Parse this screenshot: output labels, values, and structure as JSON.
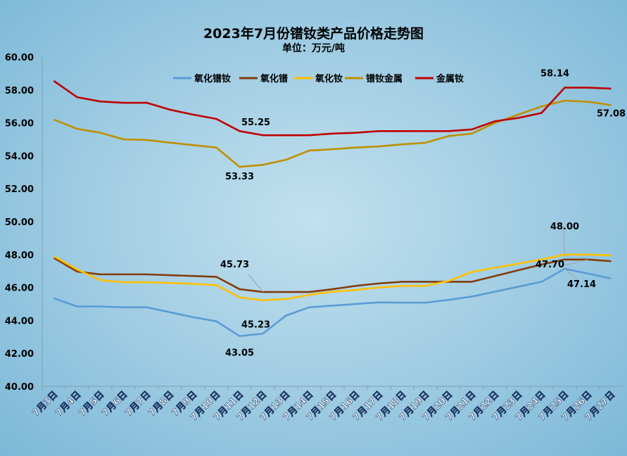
{
  "chart_data": {
    "type": "line",
    "title": "2023年7月份镨钕类产品价格走势图",
    "subtitle": "单位：万元/吨",
    "xlabel": "",
    "ylabel": "",
    "ylim": [
      40,
      60
    ],
    "yticks": [
      "40.00",
      "42.00",
      "44.00",
      "46.00",
      "48.00",
      "50.00",
      "52.00",
      "54.00",
      "56.00",
      "58.00",
      "60.00"
    ],
    "grid": false,
    "legend_position": "top",
    "categories": [
      "7月3日",
      "7月4日",
      "7月5日",
      "7月6日",
      "7月7日",
      "7月8日",
      "7月9日",
      "7月10日",
      "7月11日",
      "7月12日",
      "7月13日",
      "7月14日",
      "7月15日",
      "7月16日",
      "7月17日",
      "7月18日",
      "7月19日",
      "7月20日",
      "7月21日",
      "7月22日",
      "7月23日",
      "7月24日",
      "7月25日",
      "7月26日",
      "7月27日"
    ],
    "series": [
      {
        "name": "氧化镨钕",
        "color": "#5b9bd5",
        "values": [
          45.35,
          44.85,
          44.85,
          44.8,
          44.8,
          44.5,
          44.2,
          43.95,
          43.05,
          43.2,
          44.3,
          44.8,
          44.9,
          45.0,
          45.1,
          45.08,
          45.08,
          45.25,
          45.45,
          45.75,
          46.05,
          46.35,
          47.14,
          46.85,
          46.55
        ]
      },
      {
        "name": "氧化镨",
        "color": "#843c0c",
        "values": [
          47.8,
          46.97,
          46.8,
          46.8,
          46.8,
          46.75,
          46.7,
          46.65,
          45.9,
          45.73,
          45.73,
          45.73,
          45.9,
          46.1,
          46.25,
          46.35,
          46.35,
          46.35,
          46.35,
          46.7,
          47.05,
          47.4,
          47.7,
          47.7,
          47.6
        ]
      },
      {
        "name": "氧化钕",
        "color": "#ffc000",
        "values": [
          47.9,
          47.1,
          46.45,
          46.32,
          46.32,
          46.28,
          46.22,
          46.15,
          45.4,
          45.23,
          45.3,
          45.55,
          45.75,
          45.85,
          46.0,
          46.1,
          46.1,
          46.4,
          46.95,
          47.2,
          47.45,
          47.7,
          48.0,
          48.0,
          47.95
        ]
      },
      {
        "name": "镨钕金属",
        "color": "#bf9000",
        "values": [
          56.2,
          55.64,
          55.4,
          55.0,
          54.96,
          54.8,
          54.65,
          54.5,
          53.33,
          53.45,
          53.76,
          54.32,
          54.4,
          54.5,
          54.57,
          54.7,
          54.79,
          55.2,
          55.35,
          56.0,
          56.5,
          57.0,
          57.35,
          57.28,
          57.08
        ]
      },
      {
        "name": "金属钕",
        "color": "#c00000",
        "values": [
          58.55,
          57.56,
          57.3,
          57.22,
          57.22,
          56.8,
          56.5,
          56.24,
          55.5,
          55.25,
          55.25,
          55.25,
          55.35,
          55.4,
          55.5,
          55.5,
          55.5,
          55.5,
          55.6,
          56.1,
          56.3,
          56.6,
          58.14,
          58.14,
          58.08
        ]
      }
    ],
    "data_labels": [
      {
        "series": 4,
        "index": 9,
        "text": "55.25"
      },
      {
        "series": 3,
        "index": 8,
        "text": "53.33"
      },
      {
        "series": 1,
        "index": 9,
        "text": "45.73"
      },
      {
        "series": 2,
        "index": 9,
        "text": "45.23"
      },
      {
        "series": 0,
        "index": 8,
        "text": "43.05"
      },
      {
        "series": 4,
        "index": 22,
        "text": "58.14"
      },
      {
        "series": 3,
        "index": 24,
        "text": "57.08"
      },
      {
        "series": 2,
        "index": 22,
        "text": "48.00"
      },
      {
        "series": 1,
        "index": 23,
        "text": "47.70"
      },
      {
        "series": 0,
        "index": 22,
        "text": "47.14"
      }
    ]
  }
}
